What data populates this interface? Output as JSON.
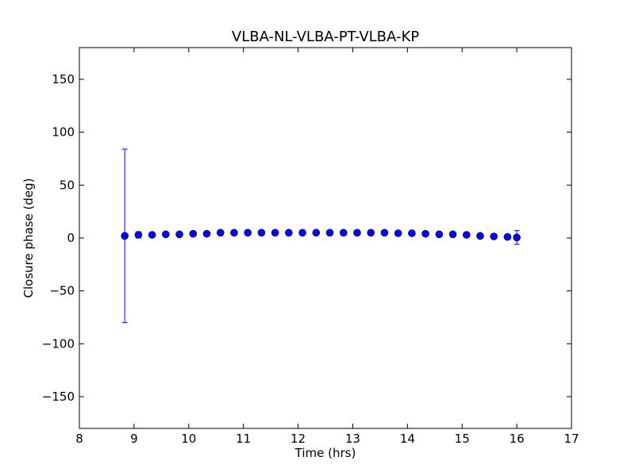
{
  "chart_data": {
    "type": "scatter",
    "title": "VLBA-NL-VLBA-PT-VLBA-KP",
    "xlabel": "Time (hrs)",
    "ylabel": "Closure phase (deg)",
    "xlim": [
      8,
      17
    ],
    "ylim": [
      -180,
      180
    ],
    "xticks": [
      8,
      9,
      10,
      11,
      12,
      13,
      14,
      15,
      16,
      17
    ],
    "yticks": [
      -150,
      -100,
      -50,
      0,
      50,
      100,
      150
    ],
    "xtick_labels": [
      "8",
      "9",
      "10",
      "11",
      "12",
      "13",
      "14",
      "15",
      "16",
      "17"
    ],
    "ytick_labels": [
      "−150",
      "−100",
      "−50",
      "0",
      "50",
      "100",
      "150"
    ],
    "grid": false,
    "marker_color": "#0000ff",
    "errorbar_color": "#0000ff",
    "series": [
      {
        "x": [
          8.83,
          9.08,
          9.33,
          9.58,
          9.83,
          10.08,
          10.33,
          10.58,
          10.83,
          11.08,
          11.33,
          11.58,
          11.83,
          12.08,
          12.33,
          12.58,
          12.83,
          13.08,
          13.33,
          13.58,
          13.83,
          14.08,
          14.33,
          14.58,
          14.83,
          15.08,
          15.33,
          15.58,
          15.83,
          16.0
        ],
        "y": [
          2,
          3,
          3,
          3.5,
          3.5,
          4,
          4,
          5,
          5,
          5,
          5,
          5,
          5,
          5,
          5,
          5,
          5,
          5,
          5,
          5,
          4.5,
          4.5,
          4,
          3.5,
          3.5,
          3,
          2,
          1.5,
          1,
          0.5
        ],
        "yerr": [
          82,
          3,
          2,
          2,
          2,
          2,
          2,
          2,
          2,
          2,
          2,
          2,
          2,
          2,
          2,
          2,
          2,
          2,
          2,
          2,
          2,
          2,
          2,
          2,
          2,
          2,
          2,
          2,
          2,
          6.5
        ]
      }
    ]
  }
}
